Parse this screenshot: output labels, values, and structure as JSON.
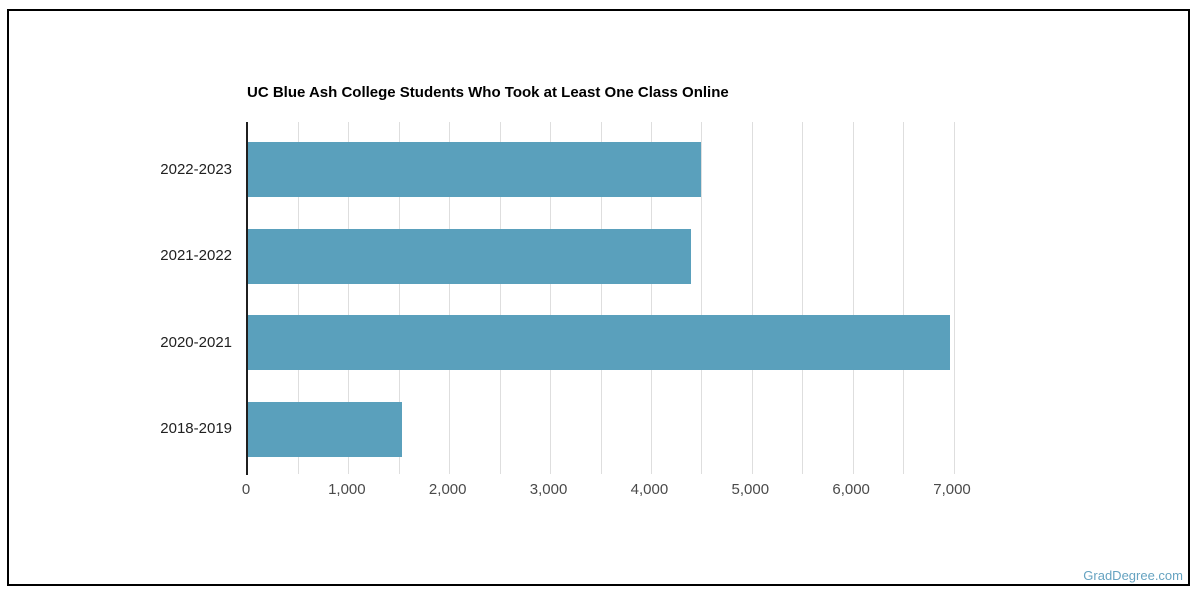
{
  "page": {
    "watermark": "GradDegree.com"
  },
  "chart_data": {
    "type": "bar",
    "orientation": "horizontal",
    "title": "UC Blue Ash College Students Who Took at Least One Class Online",
    "categories": [
      "2022-2023",
      "2021-2022",
      "2020-2021",
      "2018-2019"
    ],
    "values": [
      4490,
      4390,
      6960,
      1530
    ],
    "xlabel": "",
    "ylabel": "",
    "xlim": [
      0,
      7000
    ],
    "x_tick_step": 1000,
    "x_gridline_step": 500,
    "x_tick_labels": [
      "0",
      "1,000",
      "2,000",
      "3,000",
      "4,000",
      "5,000",
      "6,000",
      "7,000"
    ],
    "grid": true,
    "legend": false,
    "colors": {
      "bar": "#5aa0bc",
      "gridline": "#dedede",
      "axis": "#1f1f1f",
      "title_text": "#000000",
      "category_text": "#212121",
      "tick_text": "#4a4a4a",
      "watermark_text": "#66a3c1",
      "background": "#ffffff",
      "frame_border": "#000000"
    }
  }
}
